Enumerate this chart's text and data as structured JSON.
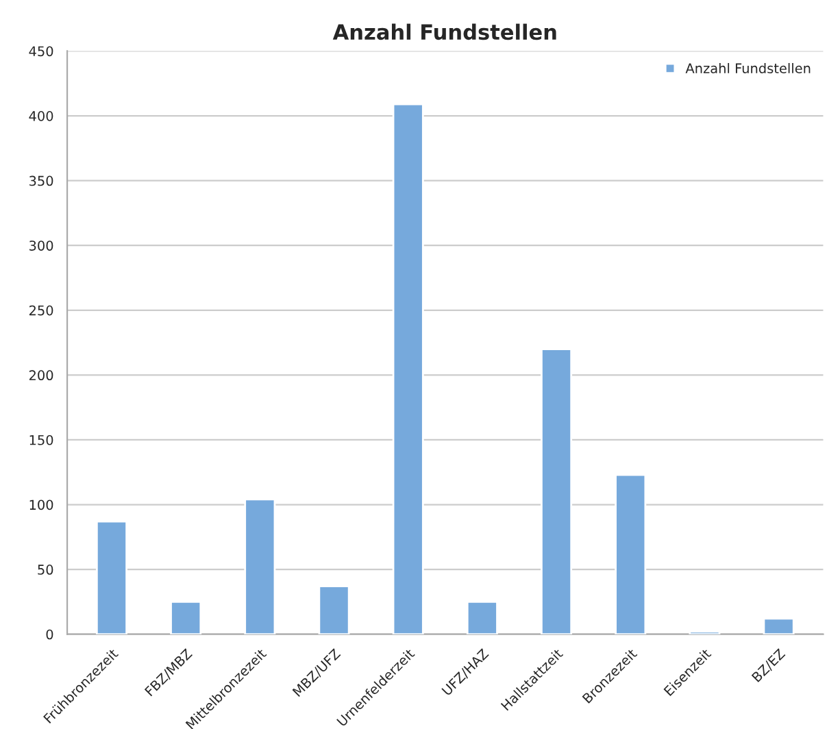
{
  "chart_data": {
    "type": "bar",
    "title": "Anzahl Fundstellen",
    "categories": [
      "Frühbronzezeit",
      "FBZ/MBZ",
      "Mittelbronzezeit",
      "MBZ/UFZ",
      "Urnenfelderzeit",
      "UFZ/HAZ",
      "Hallstattzeit",
      "Bronzezeit",
      "Eisenzeit",
      "BZ/EZ"
    ],
    "series": [
      {
        "name": "Anzahl Fundstellen",
        "color": "#76a9dc",
        "values": [
          87,
          25,
          104,
          37,
          409,
          25,
          220,
          123,
          2,
          12
        ]
      }
    ],
    "ylim": [
      0,
      450
    ],
    "yticks": [
      0,
      50,
      100,
      150,
      200,
      250,
      300,
      350,
      400,
      450
    ],
    "grid": "y",
    "legend": "top right"
  }
}
